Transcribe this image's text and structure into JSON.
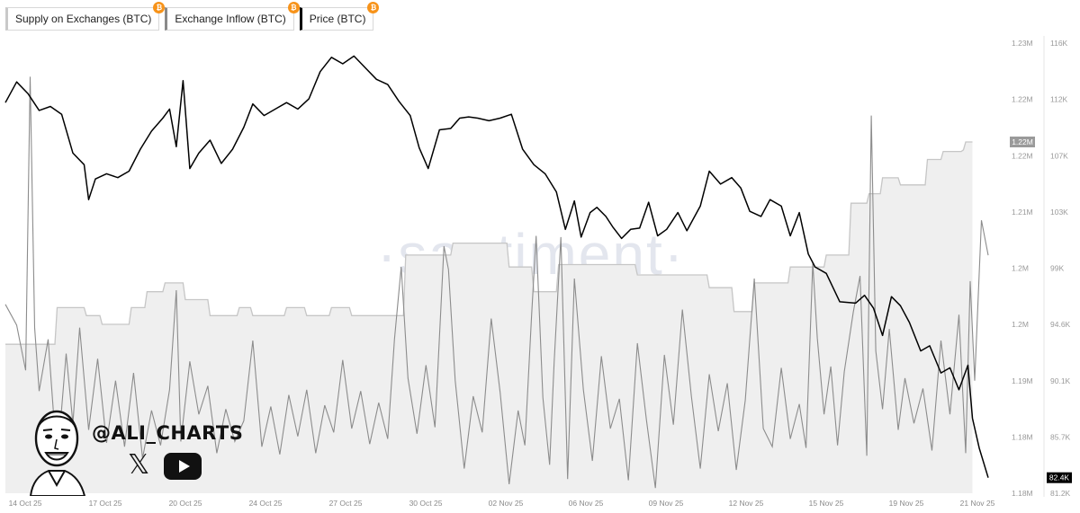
{
  "legend": {
    "supply_label": "Supply on Exchanges (BTC)",
    "inflow_label": "Exchange Inflow (BTC)",
    "price_label": "Price (BTC)",
    "badge": "₿"
  },
  "watermark": "·santiment·",
  "branding": {
    "handle": "@ALI_CHARTS",
    "x_glyph": "𝕏"
  },
  "colors": {
    "price": "#000000",
    "inflow": "#8c8c8c",
    "supply_line": "#c6c6c6",
    "supply_fill": "#efefef",
    "badge": "#f7931a"
  },
  "chart_data": {
    "type": "line",
    "x_tick_labels": [
      "14 Oct 25",
      "17 Oct 25",
      "20 Oct 25",
      "24 Oct 25",
      "27 Oct 25",
      "30 Oct 25",
      "02 Nov 25",
      "06 Nov 25",
      "09 Nov 25",
      "12 Nov 25",
      "15 Nov 25",
      "19 Nov 25",
      "21 Nov 25"
    ],
    "x_range_days": [
      0,
      38.5
    ],
    "supply_axis": {
      "tick_labels": [
        "1.23M",
        "1.22M",
        "1.22M",
        "1.21M",
        "1.2M",
        "1.2M",
        "1.19M",
        "1.18M",
        "1.18M"
      ],
      "range": [
        1.177,
        1.2335
      ],
      "current_label": "1.22M"
    },
    "price_axis": {
      "tick_labels": [
        "116K",
        "112K",
        "107K",
        "103K",
        "99K",
        "94.6K",
        "90.1K",
        "85.7K",
        "81.2K"
      ],
      "range": [
        81.2,
        116.0
      ],
      "current_label": "82.4K"
    },
    "series": [
      {
        "name": "Supply on Exchanges (BTC)",
        "axis": "supply",
        "step": true,
        "points": [
          [
            0,
            1.1957
          ],
          [
            2.2,
            1.1957
          ],
          [
            2.3,
            1.2003
          ],
          [
            3.5,
            1.2003
          ],
          [
            3.6,
            1.1993
          ],
          [
            4.2,
            1.1993
          ],
          [
            4.3,
            1.1982
          ],
          [
            5.5,
            1.1982
          ],
          [
            5.6,
            1.2003
          ],
          [
            6.2,
            1.2003
          ],
          [
            6.3,
            1.2023
          ],
          [
            7.0,
            1.2023
          ],
          [
            7.1,
            1.2034
          ],
          [
            7.9,
            1.2034
          ],
          [
            8.0,
            1.2013
          ],
          [
            9.0,
            1.2013
          ],
          [
            9.1,
            1.1993
          ],
          [
            10.3,
            1.1993
          ],
          [
            10.4,
            1.2003
          ],
          [
            10.9,
            1.2003
          ],
          [
            11.0,
            1.1993
          ],
          [
            12.4,
            1.1993
          ],
          [
            12.5,
            1.2003
          ],
          [
            13.3,
            1.2003
          ],
          [
            13.4,
            1.1993
          ],
          [
            14.4,
            1.1993
          ],
          [
            14.5,
            1.2003
          ],
          [
            15.3,
            1.2003
          ],
          [
            15.4,
            1.1993
          ],
          [
            17.7,
            1.1993
          ],
          [
            17.8,
            1.2069
          ],
          [
            19.8,
            1.2069
          ],
          [
            19.9,
            1.2084
          ],
          [
            22.3,
            1.2084
          ],
          [
            22.4,
            1.2054
          ],
          [
            23.4,
            1.2054
          ],
          [
            23.5,
            1.2023
          ],
          [
            24.5,
            1.2023
          ],
          [
            24.6,
            1.2057
          ],
          [
            28.0,
            1.2057
          ],
          [
            28.1,
            1.2044
          ],
          [
            31.2,
            1.2044
          ],
          [
            31.3,
            1.2028
          ],
          [
            32.3,
            1.2028
          ],
          [
            32.4,
            1.1998
          ],
          [
            33.2,
            1.1998
          ],
          [
            33.3,
            1.2034
          ],
          [
            34.8,
            1.2034
          ],
          [
            34.9,
            1.2054
          ],
          [
            36.4,
            1.2054
          ],
          [
            36.5,
            1.2069
          ],
          [
            37.5,
            1.2069
          ],
          [
            37.6,
            1.2134
          ],
          [
            38.3,
            1.2134
          ],
          [
            38.4,
            1.2146
          ],
          [
            38.9,
            1.2146
          ],
          [
            39.0,
            1.2166
          ],
          [
            39.7,
            1.2166
          ],
          [
            39.8,
            1.2157
          ],
          [
            40.9,
            1.2157
          ],
          [
            41.0,
            1.2189
          ],
          [
            41.6,
            1.2189
          ],
          [
            41.7,
            1.2199
          ],
          [
            42.5,
            1.2199
          ],
          [
            42.6,
            1.2201
          ],
          [
            42.7,
            1.2211
          ],
          [
            43.0,
            1.2211
          ]
        ]
      },
      {
        "name": "Price (BTC)",
        "axis": "price",
        "points": [
          [
            0,
            111.4
          ],
          [
            0.5,
            113.0
          ],
          [
            1.0,
            112.1
          ],
          [
            1.5,
            110.8
          ],
          [
            2.0,
            111.1
          ],
          [
            2.5,
            110.5
          ],
          [
            3.0,
            107.5
          ],
          [
            3.5,
            106.6
          ],
          [
            3.7,
            103.9
          ],
          [
            4.0,
            105.5
          ],
          [
            4.5,
            105.9
          ],
          [
            5.0,
            105.6
          ],
          [
            5.5,
            106.1
          ],
          [
            6.0,
            107.8
          ],
          [
            6.5,
            109.2
          ],
          [
            7.0,
            110.2
          ],
          [
            7.3,
            110.9
          ],
          [
            7.6,
            108.0
          ],
          [
            7.9,
            113.1
          ],
          [
            8.2,
            106.3
          ],
          [
            8.6,
            107.5
          ],
          [
            9.1,
            108.5
          ],
          [
            9.6,
            106.7
          ],
          [
            10.1,
            107.8
          ],
          [
            10.6,
            109.5
          ],
          [
            11.0,
            111.3
          ],
          [
            11.5,
            110.4
          ],
          [
            12.0,
            110.9
          ],
          [
            12.5,
            111.4
          ],
          [
            13.0,
            110.9
          ],
          [
            13.5,
            111.7
          ],
          [
            14.0,
            113.8
          ],
          [
            14.5,
            114.9
          ],
          [
            15.0,
            114.4
          ],
          [
            15.5,
            115.0
          ],
          [
            16.0,
            114.1
          ],
          [
            16.5,
            113.2
          ],
          [
            17.0,
            112.8
          ],
          [
            17.5,
            111.5
          ],
          [
            18.0,
            110.4
          ],
          [
            18.4,
            107.9
          ],
          [
            18.8,
            106.3
          ],
          [
            19.3,
            109.3
          ],
          [
            19.8,
            109.4
          ],
          [
            20.2,
            110.2
          ],
          [
            20.6,
            110.3
          ],
          [
            21.0,
            110.2
          ],
          [
            21.5,
            110.0
          ],
          [
            22.0,
            110.2
          ],
          [
            22.5,
            110.5
          ],
          [
            23.0,
            107.8
          ],
          [
            23.5,
            106.6
          ],
          [
            24.0,
            105.9
          ],
          [
            24.5,
            104.5
          ],
          [
            24.9,
            101.6
          ],
          [
            25.3,
            103.8
          ],
          [
            25.6,
            101.0
          ],
          [
            26.0,
            102.9
          ],
          [
            26.3,
            103.3
          ],
          [
            26.7,
            102.6
          ],
          [
            27.0,
            101.8
          ],
          [
            27.4,
            100.9
          ],
          [
            27.8,
            101.6
          ],
          [
            28.2,
            101.7
          ],
          [
            28.6,
            103.7
          ],
          [
            29.0,
            101.1
          ],
          [
            29.4,
            101.6
          ],
          [
            29.9,
            102.9
          ],
          [
            30.3,
            101.5
          ],
          [
            30.9,
            103.4
          ],
          [
            31.3,
            106.1
          ],
          [
            31.8,
            105.1
          ],
          [
            32.3,
            105.6
          ],
          [
            32.7,
            104.8
          ],
          [
            33.1,
            103.0
          ],
          [
            33.6,
            102.6
          ],
          [
            34.0,
            103.9
          ],
          [
            34.5,
            103.4
          ],
          [
            34.9,
            101.1
          ],
          [
            35.3,
            102.9
          ],
          [
            35.7,
            99.7
          ],
          [
            36.0,
            98.7
          ],
          [
            36.5,
            98.2
          ],
          [
            37.1,
            96.0
          ],
          [
            37.8,
            95.9
          ],
          [
            38.2,
            96.5
          ],
          [
            38.6,
            95.5
          ],
          [
            39.0,
            93.4
          ],
          [
            39.4,
            96.4
          ],
          [
            39.8,
            95.7
          ],
          [
            40.2,
            94.4
          ],
          [
            40.7,
            92.2
          ],
          [
            41.1,
            92.6
          ],
          [
            41.6,
            90.5
          ],
          [
            42.0,
            90.9
          ],
          [
            42.4,
            89.2
          ],
          [
            42.8,
            91.1
          ],
          [
            43.0,
            87.0
          ],
          [
            43.3,
            84.7
          ],
          [
            43.7,
            82.4
          ]
        ]
      },
      {
        "name": "Exchange Inflow (BTC)",
        "axis": "price",
        "points": [
          [
            0,
            95.8
          ],
          [
            0.5,
            94.2
          ],
          [
            0.9,
            90.7
          ],
          [
            1.1,
            113.4
          ],
          [
            1.3,
            94.0
          ],
          [
            1.5,
            89.1
          ],
          [
            1.9,
            93.1
          ],
          [
            2.3,
            83.5
          ],
          [
            2.7,
            92.0
          ],
          [
            3.0,
            86.6
          ],
          [
            3.3,
            94.0
          ],
          [
            3.7,
            86.1
          ],
          [
            4.1,
            91.6
          ],
          [
            4.5,
            85.1
          ],
          [
            4.9,
            89.9
          ],
          [
            5.3,
            84.8
          ],
          [
            5.7,
            90.5
          ],
          [
            6.1,
            83.9
          ],
          [
            6.5,
            87.6
          ],
          [
            6.9,
            84.9
          ],
          [
            7.3,
            89.2
          ],
          [
            7.6,
            96.9
          ],
          [
            7.8,
            85.2
          ],
          [
            8.2,
            91.4
          ],
          [
            8.6,
            87.3
          ],
          [
            9.0,
            89.5
          ],
          [
            9.4,
            84.3
          ],
          [
            9.8,
            87.7
          ],
          [
            10.2,
            85.2
          ],
          [
            10.6,
            86.8
          ],
          [
            11.0,
            93.0
          ],
          [
            11.4,
            84.8
          ],
          [
            11.8,
            87.9
          ],
          [
            12.2,
            84.2
          ],
          [
            12.6,
            88.8
          ],
          [
            13.0,
            85.6
          ],
          [
            13.4,
            89.2
          ],
          [
            13.8,
            84.3
          ],
          [
            14.2,
            88.0
          ],
          [
            14.6,
            85.9
          ],
          [
            15.0,
            91.5
          ],
          [
            15.4,
            86.2
          ],
          [
            15.8,
            89.1
          ],
          [
            16.2,
            85.0
          ],
          [
            16.6,
            88.2
          ],
          [
            17.0,
            85.4
          ],
          [
            17.3,
            93.1
          ],
          [
            17.6,
            98.7
          ],
          [
            17.9,
            90.1
          ],
          [
            18.3,
            85.8
          ],
          [
            18.7,
            91.1
          ],
          [
            19.1,
            86.3
          ],
          [
            19.5,
            100.3
          ],
          [
            19.7,
            98.5
          ],
          [
            20.0,
            89.9
          ],
          [
            20.4,
            83.1
          ],
          [
            20.8,
            88.7
          ],
          [
            21.2,
            85.9
          ],
          [
            21.6,
            94.7
          ],
          [
            22.0,
            89.0
          ],
          [
            22.4,
            81.9
          ],
          [
            22.8,
            87.6
          ],
          [
            23.1,
            84.9
          ],
          [
            23.4,
            95.0
          ],
          [
            23.6,
            101.1
          ],
          [
            23.9,
            88.6
          ],
          [
            24.2,
            83.4
          ],
          [
            24.4,
            91.3
          ],
          [
            24.7,
            101.0
          ],
          [
            25.0,
            82.3
          ],
          [
            25.3,
            97.8
          ],
          [
            25.7,
            89.2
          ],
          [
            26.1,
            83.7
          ],
          [
            26.5,
            91.8
          ],
          [
            26.9,
            86.2
          ],
          [
            27.3,
            88.5
          ],
          [
            27.7,
            82.2
          ],
          [
            28.1,
            92.8
          ],
          [
            28.5,
            86.9
          ],
          [
            28.9,
            81.6
          ],
          [
            29.3,
            91.9
          ],
          [
            29.7,
            86.5
          ],
          [
            30.1,
            95.4
          ],
          [
            30.5,
            88.7
          ],
          [
            30.9,
            83.1
          ],
          [
            31.3,
            90.4
          ],
          [
            31.7,
            86.0
          ],
          [
            32.1,
            89.7
          ],
          [
            32.5,
            83.0
          ],
          [
            32.9,
            88.4
          ],
          [
            33.3,
            97.8
          ],
          [
            33.7,
            86.2
          ],
          [
            34.1,
            84.8
          ],
          [
            34.5,
            90.9
          ],
          [
            34.9,
            85.4
          ],
          [
            35.3,
            88.1
          ],
          [
            35.6,
            84.7
          ],
          [
            35.9,
            99.0
          ],
          [
            36.1,
            93.2
          ],
          [
            36.4,
            87.3
          ],
          [
            36.7,
            91.0
          ],
          [
            37.0,
            84.9
          ],
          [
            37.3,
            90.6
          ],
          [
            37.7,
            95.2
          ],
          [
            38.0,
            98.0
          ],
          [
            38.3,
            84.1
          ],
          [
            38.5,
            110.4
          ],
          [
            38.7,
            92.2
          ],
          [
            39.0,
            87.7
          ],
          [
            39.3,
            93.9
          ],
          [
            39.7,
            86.1
          ],
          [
            40.0,
            90.1
          ],
          [
            40.4,
            86.6
          ],
          [
            40.8,
            89.3
          ],
          [
            41.2,
            84.5
          ],
          [
            41.6,
            93.0
          ],
          [
            42.0,
            87.3
          ],
          [
            42.4,
            95.0
          ],
          [
            42.7,
            84.3
          ],
          [
            42.9,
            97.6
          ],
          [
            43.1,
            89.9
          ],
          [
            43.4,
            102.3
          ],
          [
            43.7,
            99.6
          ]
        ]
      }
    ]
  }
}
